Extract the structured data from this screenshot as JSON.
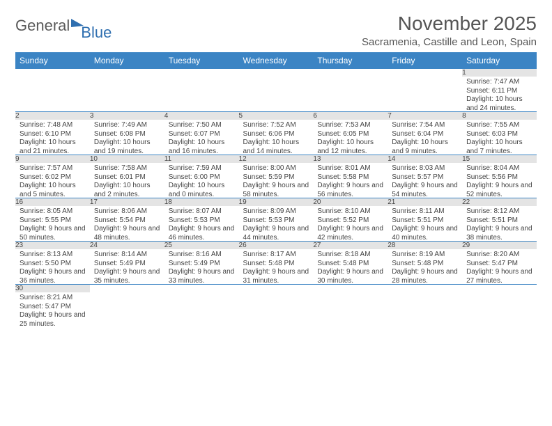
{
  "logo": {
    "text1": "General",
    "text2": "Blue"
  },
  "header": {
    "month_title": "November 2025",
    "location": "Sacramenia, Castille and Leon, Spain"
  },
  "day_labels": [
    "Sunday",
    "Monday",
    "Tuesday",
    "Wednesday",
    "Thursday",
    "Friday",
    "Saturday"
  ],
  "colors": {
    "header_bg": "#3b84c4",
    "daynum_bg": "#e4e4e4",
    "border": "#3b84c4"
  },
  "weeks": [
    [
      {
        "num": "",
        "sunrise": "",
        "sunset": "",
        "daylight": ""
      },
      {
        "num": "",
        "sunrise": "",
        "sunset": "",
        "daylight": ""
      },
      {
        "num": "",
        "sunrise": "",
        "sunset": "",
        "daylight": ""
      },
      {
        "num": "",
        "sunrise": "",
        "sunset": "",
        "daylight": ""
      },
      {
        "num": "",
        "sunrise": "",
        "sunset": "",
        "daylight": ""
      },
      {
        "num": "",
        "sunrise": "",
        "sunset": "",
        "daylight": ""
      },
      {
        "num": "1",
        "sunrise": "Sunrise: 7:47 AM",
        "sunset": "Sunset: 6:11 PM",
        "daylight": "Daylight: 10 hours and 24 minutes."
      }
    ],
    [
      {
        "num": "2",
        "sunrise": "Sunrise: 7:48 AM",
        "sunset": "Sunset: 6:10 PM",
        "daylight": "Daylight: 10 hours and 21 minutes."
      },
      {
        "num": "3",
        "sunrise": "Sunrise: 7:49 AM",
        "sunset": "Sunset: 6:08 PM",
        "daylight": "Daylight: 10 hours and 19 minutes."
      },
      {
        "num": "4",
        "sunrise": "Sunrise: 7:50 AM",
        "sunset": "Sunset: 6:07 PM",
        "daylight": "Daylight: 10 hours and 16 minutes."
      },
      {
        "num": "5",
        "sunrise": "Sunrise: 7:52 AM",
        "sunset": "Sunset: 6:06 PM",
        "daylight": "Daylight: 10 hours and 14 minutes."
      },
      {
        "num": "6",
        "sunrise": "Sunrise: 7:53 AM",
        "sunset": "Sunset: 6:05 PM",
        "daylight": "Daylight: 10 hours and 12 minutes."
      },
      {
        "num": "7",
        "sunrise": "Sunrise: 7:54 AM",
        "sunset": "Sunset: 6:04 PM",
        "daylight": "Daylight: 10 hours and 9 minutes."
      },
      {
        "num": "8",
        "sunrise": "Sunrise: 7:55 AM",
        "sunset": "Sunset: 6:03 PM",
        "daylight": "Daylight: 10 hours and 7 minutes."
      }
    ],
    [
      {
        "num": "9",
        "sunrise": "Sunrise: 7:57 AM",
        "sunset": "Sunset: 6:02 PM",
        "daylight": "Daylight: 10 hours and 5 minutes."
      },
      {
        "num": "10",
        "sunrise": "Sunrise: 7:58 AM",
        "sunset": "Sunset: 6:01 PM",
        "daylight": "Daylight: 10 hours and 2 minutes."
      },
      {
        "num": "11",
        "sunrise": "Sunrise: 7:59 AM",
        "sunset": "Sunset: 6:00 PM",
        "daylight": "Daylight: 10 hours and 0 minutes."
      },
      {
        "num": "12",
        "sunrise": "Sunrise: 8:00 AM",
        "sunset": "Sunset: 5:59 PM",
        "daylight": "Daylight: 9 hours and 58 minutes."
      },
      {
        "num": "13",
        "sunrise": "Sunrise: 8:01 AM",
        "sunset": "Sunset: 5:58 PM",
        "daylight": "Daylight: 9 hours and 56 minutes."
      },
      {
        "num": "14",
        "sunrise": "Sunrise: 8:03 AM",
        "sunset": "Sunset: 5:57 PM",
        "daylight": "Daylight: 9 hours and 54 minutes."
      },
      {
        "num": "15",
        "sunrise": "Sunrise: 8:04 AM",
        "sunset": "Sunset: 5:56 PM",
        "daylight": "Daylight: 9 hours and 52 minutes."
      }
    ],
    [
      {
        "num": "16",
        "sunrise": "Sunrise: 8:05 AM",
        "sunset": "Sunset: 5:55 PM",
        "daylight": "Daylight: 9 hours and 50 minutes."
      },
      {
        "num": "17",
        "sunrise": "Sunrise: 8:06 AM",
        "sunset": "Sunset: 5:54 PM",
        "daylight": "Daylight: 9 hours and 48 minutes."
      },
      {
        "num": "18",
        "sunrise": "Sunrise: 8:07 AM",
        "sunset": "Sunset: 5:53 PM",
        "daylight": "Daylight: 9 hours and 46 minutes."
      },
      {
        "num": "19",
        "sunrise": "Sunrise: 8:09 AM",
        "sunset": "Sunset: 5:53 PM",
        "daylight": "Daylight: 9 hours and 44 minutes."
      },
      {
        "num": "20",
        "sunrise": "Sunrise: 8:10 AM",
        "sunset": "Sunset: 5:52 PM",
        "daylight": "Daylight: 9 hours and 42 minutes."
      },
      {
        "num": "21",
        "sunrise": "Sunrise: 8:11 AM",
        "sunset": "Sunset: 5:51 PM",
        "daylight": "Daylight: 9 hours and 40 minutes."
      },
      {
        "num": "22",
        "sunrise": "Sunrise: 8:12 AM",
        "sunset": "Sunset: 5:51 PM",
        "daylight": "Daylight: 9 hours and 38 minutes."
      }
    ],
    [
      {
        "num": "23",
        "sunrise": "Sunrise: 8:13 AM",
        "sunset": "Sunset: 5:50 PM",
        "daylight": "Daylight: 9 hours and 36 minutes."
      },
      {
        "num": "24",
        "sunrise": "Sunrise: 8:14 AM",
        "sunset": "Sunset: 5:49 PM",
        "daylight": "Daylight: 9 hours and 35 minutes."
      },
      {
        "num": "25",
        "sunrise": "Sunrise: 8:16 AM",
        "sunset": "Sunset: 5:49 PM",
        "daylight": "Daylight: 9 hours and 33 minutes."
      },
      {
        "num": "26",
        "sunrise": "Sunrise: 8:17 AM",
        "sunset": "Sunset: 5:48 PM",
        "daylight": "Daylight: 9 hours and 31 minutes."
      },
      {
        "num": "27",
        "sunrise": "Sunrise: 8:18 AM",
        "sunset": "Sunset: 5:48 PM",
        "daylight": "Daylight: 9 hours and 30 minutes."
      },
      {
        "num": "28",
        "sunrise": "Sunrise: 8:19 AM",
        "sunset": "Sunset: 5:48 PM",
        "daylight": "Daylight: 9 hours and 28 minutes."
      },
      {
        "num": "29",
        "sunrise": "Sunrise: 8:20 AM",
        "sunset": "Sunset: 5:47 PM",
        "daylight": "Daylight: 9 hours and 27 minutes."
      }
    ],
    [
      {
        "num": "30",
        "sunrise": "Sunrise: 8:21 AM",
        "sunset": "Sunset: 5:47 PM",
        "daylight": "Daylight: 9 hours and 25 minutes."
      },
      {
        "num": "",
        "sunrise": "",
        "sunset": "",
        "daylight": ""
      },
      {
        "num": "",
        "sunrise": "",
        "sunset": "",
        "daylight": ""
      },
      {
        "num": "",
        "sunrise": "",
        "sunset": "",
        "daylight": ""
      },
      {
        "num": "",
        "sunrise": "",
        "sunset": "",
        "daylight": ""
      },
      {
        "num": "",
        "sunrise": "",
        "sunset": "",
        "daylight": ""
      },
      {
        "num": "",
        "sunrise": "",
        "sunset": "",
        "daylight": ""
      }
    ]
  ]
}
